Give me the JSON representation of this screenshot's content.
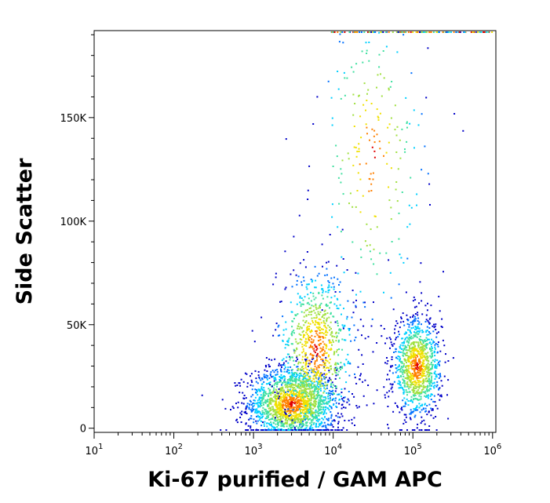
{
  "chart_data": {
    "type": "scatter",
    "style": "density-pseudocolor",
    "xlabel": "Ki-67 purified / GAM APC",
    "ylabel": "Side Scatter",
    "x_scale": "log",
    "xlim": [
      10,
      1100000
    ],
    "ylim": [
      -2000,
      192000
    ],
    "x_ticks": [
      {
        "value": 10,
        "base": "10",
        "exp": "1"
      },
      {
        "value": 100,
        "base": "10",
        "exp": "2"
      },
      {
        "value": 1000,
        "base": "10",
        "exp": "3"
      },
      {
        "value": 10000,
        "base": "10",
        "exp": "4"
      },
      {
        "value": 100000,
        "base": "10",
        "exp": "5"
      },
      {
        "value": 1000000,
        "base": "10",
        "exp": "6"
      }
    ],
    "y_ticks": [
      {
        "value": 0,
        "label": "0"
      },
      {
        "value": 50000,
        "label": "50K"
      },
      {
        "value": 100000,
        "label": "100K"
      },
      {
        "value": 150000,
        "label": "150K"
      }
    ],
    "color_scale": [
      "#0000c8",
      "#0070ff",
      "#00d0ff",
      "#40e0a0",
      "#a0e040",
      "#f0e000",
      "#ff8000",
      "#e00000"
    ],
    "populations": [
      {
        "center_x": 3000,
        "center_y": 12000,
        "spread_log": 0.28,
        "spread_y": 9000,
        "count": 1800
      },
      {
        "center_x": 6000,
        "center_y": 38000,
        "spread_log": 0.25,
        "spread_y": 20000,
        "count": 900
      },
      {
        "center_x": 110000,
        "center_y": 30000,
        "spread_log": 0.15,
        "spread_y": 12000,
        "count": 1100
      },
      {
        "center_x": 30000,
        "center_y": 130000,
        "spread_log": 0.35,
        "spread_y": 40000,
        "count": 250
      }
    ],
    "grid": false,
    "legend": "none"
  }
}
